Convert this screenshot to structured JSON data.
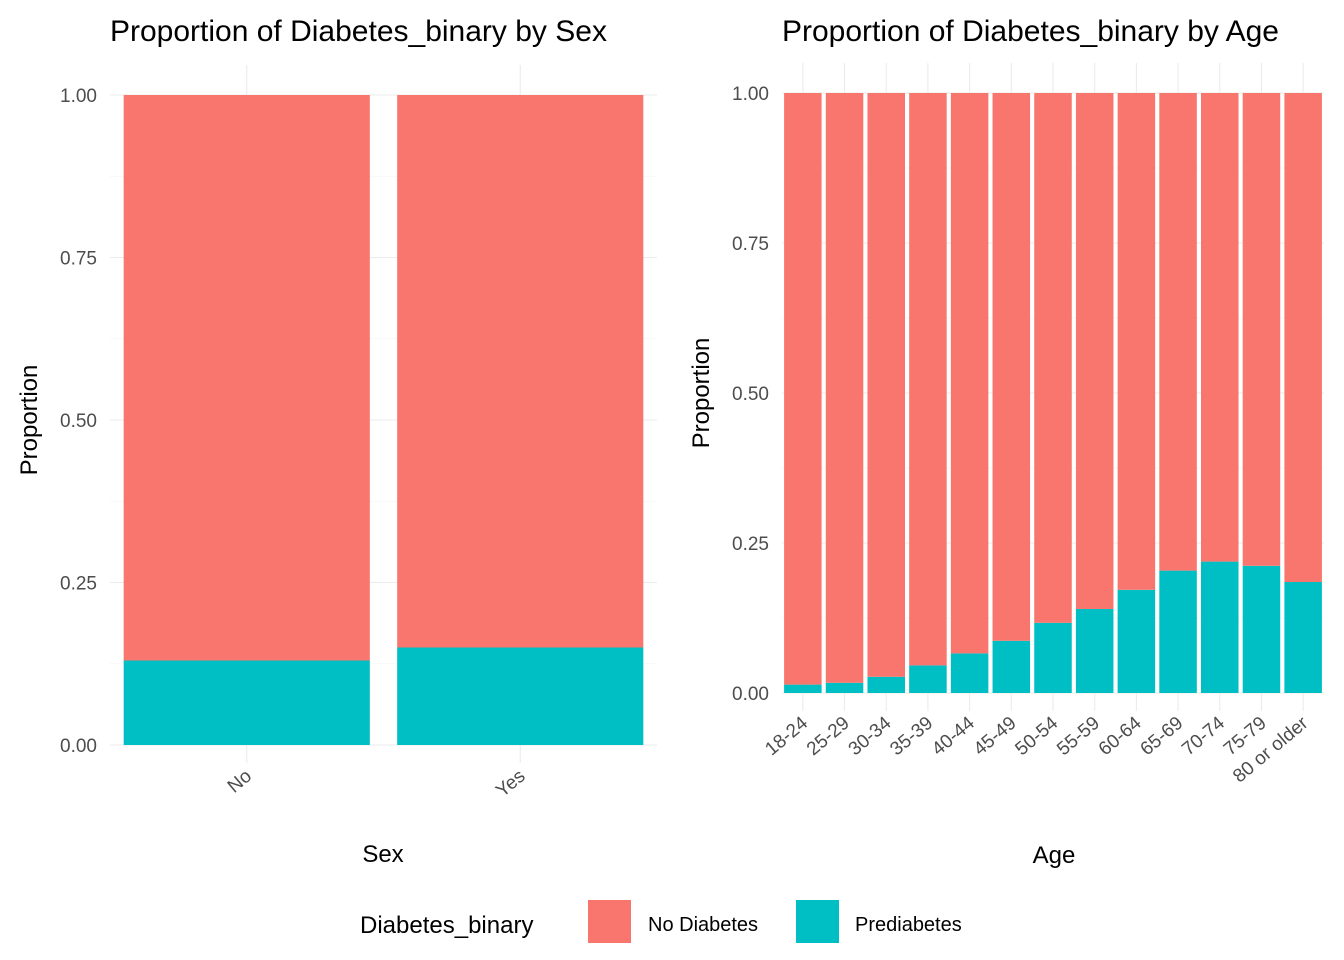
{
  "colors": {
    "No Diabetes": "#F8766D",
    "Prediabetes": "#00BFC4"
  },
  "legend": {
    "title": "Diabetes_binary",
    "items": [
      "No Diabetes",
      "Prediabetes"
    ]
  },
  "chart_data": [
    {
      "type": "bar",
      "stacked": true,
      "title": "Proportion of Diabetes_binary by Sex",
      "xlabel": "Sex",
      "ylabel": "Proportion",
      "categories": [
        "No",
        "Yes"
      ],
      "ylim": [
        0,
        1
      ],
      "yticks": [
        "0.00",
        "0.25",
        "0.50",
        "0.75",
        "1.00"
      ],
      "grid": true,
      "series": [
        {
          "name": "Prediabetes",
          "values": [
            0.13,
            0.15
          ]
        },
        {
          "name": "No Diabetes",
          "values": [
            0.87,
            0.85
          ]
        }
      ]
    },
    {
      "type": "bar",
      "stacked": true,
      "title": "Proportion of Diabetes_binary by Age",
      "xlabel": "Age",
      "ylabel": "Proportion",
      "categories": [
        "18-24",
        "25-29",
        "30-34",
        "35-39",
        "40-44",
        "45-49",
        "50-54",
        "55-59",
        "60-64",
        "65-69",
        "70-74",
        "75-79",
        "80 or older"
      ],
      "ylim": [
        0,
        1
      ],
      "yticks": [
        "0.00",
        "0.25",
        "0.50",
        "0.75",
        "1.00"
      ],
      "grid": true,
      "series": [
        {
          "name": "Prediabetes",
          "values": [
            0.014,
            0.017,
            0.027,
            0.046,
            0.066,
            0.087,
            0.117,
            0.14,
            0.172,
            0.204,
            0.219,
            0.212,
            0.185
          ]
        },
        {
          "name": "No Diabetes",
          "values": [
            0.986,
            0.983,
            0.973,
            0.954,
            0.934,
            0.913,
            0.883,
            0.86,
            0.828,
            0.796,
            0.781,
            0.788,
            0.815
          ]
        }
      ]
    }
  ]
}
